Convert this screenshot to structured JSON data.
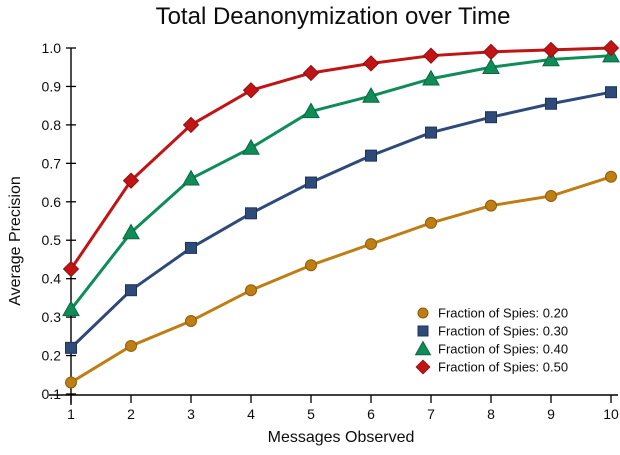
{
  "chart_data": {
    "type": "line",
    "title": "Total Deanonymization over Time",
    "xlabel": "Messages Observed",
    "ylabel": "Average Precision",
    "xlim": [
      1,
      10
    ],
    "ylim": [
      0.1,
      1.0
    ],
    "grid": false,
    "legend_position": "lower right",
    "axis_color": "#000000",
    "x": [
      1,
      2,
      3,
      4,
      5,
      6,
      7,
      8,
      9,
      10
    ],
    "x_tick_labels": [
      "1",
      "2",
      "3",
      "4",
      "5",
      "6",
      "7",
      "8",
      "9",
      "10"
    ],
    "y_ticks": [
      0.1,
      0.2,
      0.3,
      0.4,
      0.5,
      0.6,
      0.7,
      0.8,
      0.9,
      1.0
    ],
    "y_tick_labels": [
      "0.1",
      "0.2",
      "0.3",
      "0.4",
      "0.5",
      "0.6",
      "0.7",
      "0.8",
      "0.9",
      "1.0"
    ],
    "series": [
      {
        "name": "Fraction of Spies: 0.20",
        "color": "#BE7E13",
        "edge": "#8E5C0C",
        "marker": "circle",
        "values": [
          0.13,
          0.225,
          0.29,
          0.37,
          0.435,
          0.49,
          0.545,
          0.59,
          0.615,
          0.665
        ]
      },
      {
        "name": "Fraction of Spies: 0.30",
        "color": "#2E4A78",
        "edge": "#20345A",
        "marker": "square",
        "values": [
          0.22,
          0.37,
          0.48,
          0.57,
          0.65,
          0.72,
          0.78,
          0.82,
          0.855,
          0.885
        ]
      },
      {
        "name": "Fraction of Spies: 0.40",
        "color": "#0F8C57",
        "edge": "#0A6740",
        "marker": "triangle-up",
        "values": [
          0.32,
          0.52,
          0.66,
          0.74,
          0.835,
          0.875,
          0.92,
          0.95,
          0.97,
          0.98
        ]
      },
      {
        "name": "Fraction of Spies: 0.50",
        "color": "#C11414",
        "edge": "#911010",
        "marker": "diamond",
        "values": [
          0.425,
          0.655,
          0.8,
          0.89,
          0.935,
          0.96,
          0.98,
          0.99,
          0.995,
          1.0
        ]
      }
    ]
  }
}
